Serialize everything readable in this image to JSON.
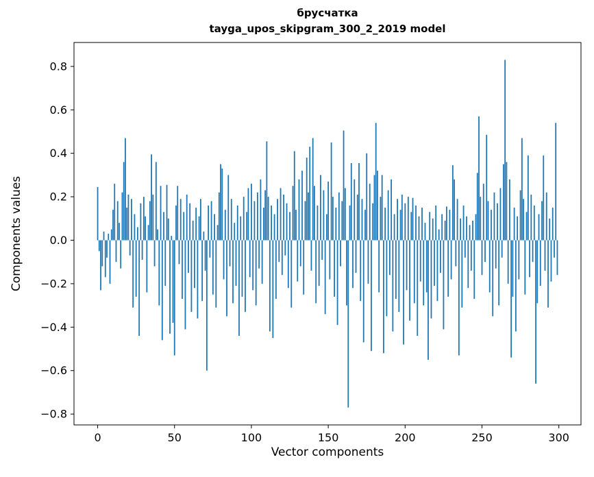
{
  "figure": {
    "title_line1": "брусчатка",
    "title_line2": "tayga_upos_skipgram_300_2_2019 model",
    "xlabel": "Vector components",
    "ylabel": "Components values"
  },
  "chart_data": {
    "type": "bar",
    "title": "брусчатка",
    "subtitle": "tayga_upos_skipgram_300_2_2019 model",
    "xlabel": "Vector components",
    "ylabel": "Components values",
    "bar_color": "#1f77b4",
    "grid": false,
    "legend": "none",
    "xlim": [
      -15.4,
      314.4
    ],
    "ylim": [
      -0.85,
      0.91
    ],
    "xticks": [
      0,
      50,
      100,
      150,
      200,
      250,
      300
    ],
    "xtick_labels": [
      "0",
      "50",
      "100",
      "150",
      "200",
      "250",
      "300"
    ],
    "yticks": [
      -0.8,
      -0.6,
      -0.4,
      -0.2,
      0.0,
      0.2,
      0.4,
      0.6,
      0.8
    ],
    "ytick_labels": [
      "−0.8",
      "−0.6",
      "−0.4",
      "−0.2",
      "0.0",
      "0.2",
      "0.4",
      "0.6",
      "0.8"
    ],
    "values": [
      0.245,
      -0.05,
      -0.23,
      -0.12,
      0.04,
      -0.17,
      -0.08,
      0.03,
      -0.2,
      0.05,
      0.14,
      0.26,
      -0.1,
      0.18,
      0.08,
      -0.13,
      0.22,
      0.36,
      0.47,
      0.15,
      0.21,
      -0.07,
      0.19,
      -0.31,
      0.12,
      -0.26,
      0.06,
      -0.44,
      0.17,
      -0.09,
      0.2,
      0.11,
      -0.24,
      0.07,
      0.18,
      0.395,
      0.21,
      -0.12,
      0.36,
      0.05,
      -0.3,
      0.25,
      -0.46,
      0.13,
      -0.21,
      0.255,
      0.1,
      -0.43,
      0.02,
      -0.38,
      -0.53,
      0.16,
      0.25,
      -0.11,
      0.19,
      -0.27,
      0.13,
      -0.41,
      0.21,
      -0.15,
      0.17,
      -0.33,
      0.09,
      -0.22,
      0.15,
      -0.36,
      0.11,
      0.19,
      -0.28,
      0.04,
      -0.14,
      -0.6,
      0.16,
      -0.08,
      0.18,
      -0.25,
      0.12,
      -0.31,
      0.07,
      0.22,
      0.35,
      0.33,
      -0.18,
      0.14,
      -0.35,
      0.3,
      -0.12,
      0.19,
      -0.29,
      0.08,
      -0.21,
      0.16,
      -0.44,
      0.11,
      -0.26,
      0.2,
      -0.33,
      0.13,
      0.24,
      -0.17,
      0.26,
      -0.23,
      0.18,
      -0.3,
      0.22,
      -0.13,
      0.28,
      -0.2,
      0.15,
      0.23,
      0.455,
      0.2,
      -0.42,
      0.16,
      -0.45,
      0.12,
      -0.27,
      0.19,
      -0.1,
      0.24,
      -0.16,
      0.21,
      -0.07,
      0.17,
      -0.22,
      0.13,
      -0.31,
      0.25,
      0.41,
      0.14,
      -0.19,
      0.28,
      -0.12,
      0.32,
      -0.25,
      0.18,
      0.38,
      0.22,
      0.43,
      -0.14,
      0.47,
      0.25,
      -0.29,
      0.16,
      -0.21,
      0.3,
      -0.09,
      0.23,
      -0.34,
      0.12,
      0.27,
      -0.18,
      0.45,
      0.2,
      -0.26,
      0.15,
      -0.39,
      0.22,
      -0.12,
      0.18,
      0.505,
      0.24,
      -0.3,
      -0.77,
      0.16,
      0.355,
      -0.22,
      0.28,
      -0.15,
      0.21,
      0.355,
      -0.28,
      0.19,
      -0.47,
      0.14,
      0.4,
      -0.2,
      0.26,
      -0.51,
      0.17,
      0.3,
      0.54,
      0.32,
      -0.24,
      0.2,
      0.3,
      -0.52,
      0.15,
      -0.35,
      0.23,
      -0.16,
      0.28,
      -0.42,
      0.12,
      -0.27,
      0.19,
      -0.33,
      0.14,
      0.21,
      -0.48,
      0.17,
      -0.23,
      0.2,
      -0.37,
      0.13,
      0.195,
      -0.29,
      0.16,
      -0.44,
      0.11,
      -0.19,
      0.15,
      -0.3,
      0.08,
      -0.24,
      -0.55,
      0.13,
      -0.36,
      0.1,
      -0.21,
      0.16,
      -0.28,
      0.05,
      -0.15,
      0.12,
      -0.41,
      0.09,
      0.155,
      -0.26,
      0.14,
      -0.18,
      0.345,
      0.28,
      -0.12,
      0.19,
      -0.53,
      0.1,
      -0.31,
      0.16,
      -0.08,
      0.11,
      -0.22,
      0.07,
      -0.14,
      0.09,
      -0.27,
      0.12,
      0.31,
      0.57,
      0.2,
      -0.16,
      0.26,
      -0.1,
      0.485,
      0.18,
      -0.24,
      0.14,
      -0.35,
      0.22,
      -0.13,
      0.17,
      -0.3,
      0.24,
      -0.08,
      0.35,
      0.83,
      0.36,
      -0.2,
      0.28,
      -0.54,
      -0.26,
      0.15,
      -0.42,
      0.11,
      -0.18,
      0.23,
      0.47,
      0.19,
      -0.25,
      0.13,
      0.39,
      -0.17,
      0.21,
      -0.1,
      0.16,
      -0.66,
      -0.29,
      0.12,
      -0.21,
      0.18,
      0.39,
      -0.14,
      0.22,
      -0.31,
      0.1,
      -0.19,
      0.15,
      -0.08,
      0.54,
      -0.16
    ]
  }
}
